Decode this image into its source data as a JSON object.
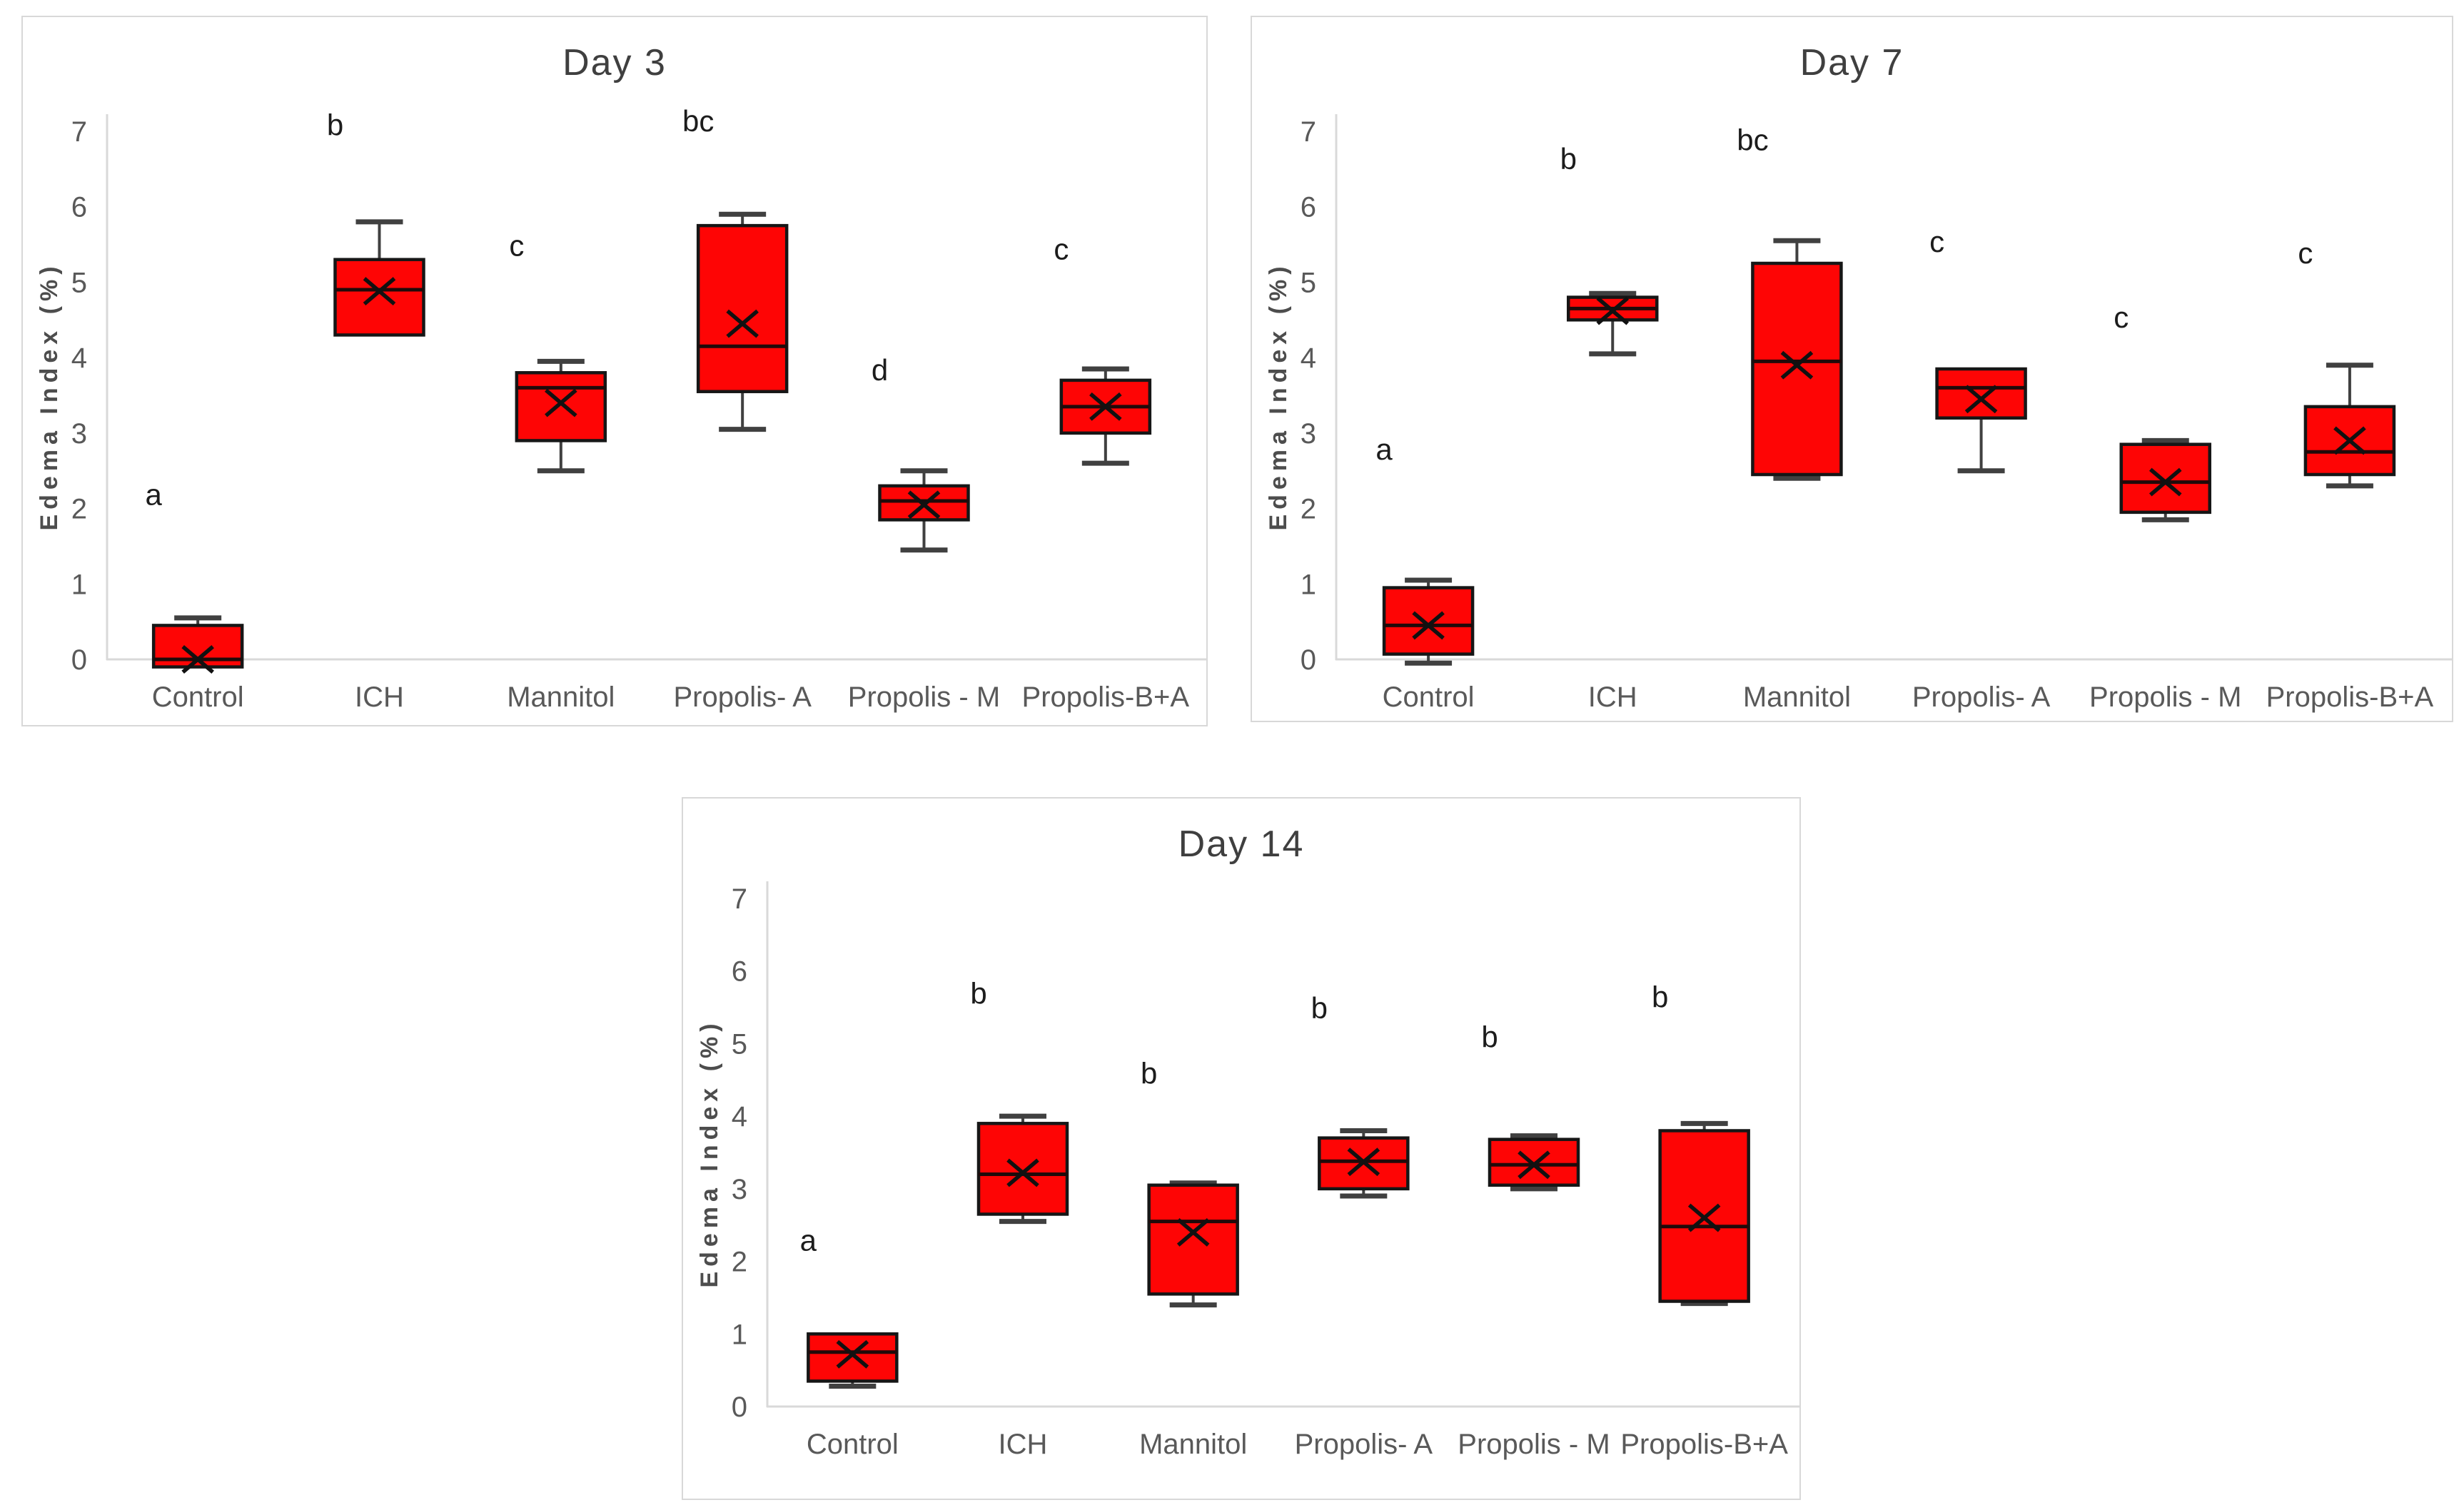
{
  "figure": {
    "background": "#ffffff",
    "description_letters": [
      "a",
      "b",
      "bc",
      "c",
      "d"
    ]
  },
  "colors": {
    "box_fill": "#fe0505",
    "box_border": "#161616",
    "median_line": "#200a0a",
    "whisker": "#404040",
    "mean_marker": "#111111",
    "axis_line": "#d9d9d9",
    "tick_text": "#595959",
    "title_text": "#3f3f3f",
    "letter_text": "#1c1c1c",
    "panel_border": "#d8d8d8"
  },
  "chart_data": [
    {
      "type": "box",
      "title": "Day 3",
      "ylabel": "Edema Index (%)",
      "xlabel": "",
      "ylim": [
        0,
        7
      ],
      "yticks": [
        0,
        1,
        2,
        3,
        4,
        5,
        6,
        7
      ],
      "grid": false,
      "legend": false,
      "categories": [
        "Control",
        "ICH",
        "Mannitol",
        "Propolis- A",
        "Propolis - M",
        "Propolis-B+A"
      ],
      "boxes": [
        {
          "label": "Control",
          "letter": "a",
          "letter_y": 2.05,
          "q1": -0.1,
          "median": 0.0,
          "q3": 0.45,
          "whisker_low": null,
          "whisker_high": 0.55,
          "mean": 0.0
        },
        {
          "label": "ICH",
          "letter": "b",
          "letter_y": 6.95,
          "q1": 4.3,
          "median": 4.9,
          "q3": 5.3,
          "whisker_low": null,
          "whisker_high": 5.8,
          "mean": 4.88
        },
        {
          "label": "Mannitol",
          "letter": "c",
          "letter_y": 5.35,
          "q1": 2.9,
          "median": 3.6,
          "q3": 3.8,
          "whisker_low": 2.5,
          "whisker_high": 3.95,
          "mean": 3.4
        },
        {
          "label": "Propolis- A",
          "letter": "bc",
          "letter_y": 7.0,
          "q1": 3.55,
          "median": 4.15,
          "q3": 5.75,
          "whisker_low": 3.05,
          "whisker_high": 5.9,
          "mean": 4.45
        },
        {
          "label": "Propolis - M",
          "letter": "d",
          "letter_y": 3.7,
          "q1": 1.85,
          "median": 2.1,
          "q3": 2.3,
          "whisker_low": 1.45,
          "whisker_high": 2.5,
          "mean": 2.05
        },
        {
          "label": "Propolis-B+A",
          "letter": "c",
          "letter_y": 5.3,
          "q1": 3.0,
          "median": 3.35,
          "q3": 3.7,
          "whisker_low": 2.6,
          "whisker_high": 3.85,
          "mean": 3.35
        }
      ]
    },
    {
      "type": "box",
      "title": "Day 7",
      "ylabel": "Edema Index (%)",
      "xlabel": "",
      "ylim": [
        0,
        7
      ],
      "yticks": [
        0,
        1,
        2,
        3,
        4,
        5,
        6,
        7
      ],
      "grid": false,
      "legend": false,
      "categories": [
        "Control",
        "ICH",
        "Mannitol",
        "Propolis- A",
        "Propolis - M",
        "Propolis-B+A"
      ],
      "boxes": [
        {
          "label": "Control",
          "letter": "a",
          "letter_y": 2.65,
          "q1": 0.07,
          "median": 0.45,
          "q3": 0.95,
          "whisker_low": -0.05,
          "whisker_high": 1.05,
          "mean": 0.45
        },
        {
          "label": "ICH",
          "letter": "b",
          "letter_y": 6.5,
          "q1": 4.5,
          "median": 4.65,
          "q3": 4.8,
          "whisker_low": 4.05,
          "whisker_high": 4.85,
          "mean": 4.62
        },
        {
          "label": "Mannitol",
          "letter": "bc",
          "letter_y": 6.75,
          "q1": 2.45,
          "median": 3.95,
          "q3": 5.25,
          "whisker_low": 2.4,
          "whisker_high": 5.55,
          "mean": 3.9
        },
        {
          "label": "Propolis- A",
          "letter": "c",
          "letter_y": 5.4,
          "q1": 3.2,
          "median": 3.6,
          "q3": 3.85,
          "whisker_low": 2.5,
          "whisker_high": null,
          "mean": 3.45
        },
        {
          "label": "Propolis - M",
          "letter": "c",
          "letter_y": 4.4,
          "q1": 1.95,
          "median": 2.35,
          "q3": 2.85,
          "whisker_low": 1.85,
          "whisker_high": 2.9,
          "mean": 2.35
        },
        {
          "label": "Propolis-B+A",
          "letter": "c",
          "letter_y": 5.25,
          "q1": 2.45,
          "median": 2.75,
          "q3": 3.35,
          "whisker_low": 2.3,
          "whisker_high": 3.9,
          "mean": 2.9
        }
      ]
    },
    {
      "type": "box",
      "title": "Day 14",
      "ylabel": "Edema Index (%)",
      "xlabel": "",
      "ylim": [
        0,
        7
      ],
      "yticks": [
        0,
        1,
        2,
        3,
        4,
        5,
        6,
        7
      ],
      "grid": false,
      "legend": false,
      "categories": [
        "Control",
        "ICH",
        "Mannitol",
        "Propolis- A",
        "Propolis - M",
        "Propolis-B+A"
      ],
      "boxes": [
        {
          "label": "Control",
          "letter": "a",
          "letter_y": 2.15,
          "q1": 0.35,
          "median": 0.75,
          "q3": 1.0,
          "whisker_low": 0.28,
          "whisker_high": null,
          "mean": 0.72
        },
        {
          "label": "ICH",
          "letter": "b",
          "letter_y": 5.55,
          "q1": 2.65,
          "median": 3.2,
          "q3": 3.9,
          "whisker_low": 2.55,
          "whisker_high": 4.0,
          "mean": 3.22
        },
        {
          "label": "Mannitol",
          "letter": "b",
          "letter_y": 4.45,
          "q1": 1.55,
          "median": 2.55,
          "q3": 3.05,
          "whisker_low": 1.4,
          "whisker_high": 3.08,
          "mean": 2.4
        },
        {
          "label": "Propolis- A",
          "letter": "b",
          "letter_y": 5.35,
          "q1": 3.0,
          "median": 3.38,
          "q3": 3.7,
          "whisker_low": 2.9,
          "whisker_high": 3.8,
          "mean": 3.37
        },
        {
          "label": "Propolis - M",
          "letter": "b",
          "letter_y": 4.95,
          "q1": 3.05,
          "median": 3.33,
          "q3": 3.68,
          "whisker_low": 3.0,
          "whisker_high": 3.73,
          "mean": 3.33
        },
        {
          "label": "Propolis-B+A",
          "letter": "b",
          "letter_y": 5.5,
          "q1": 1.45,
          "median": 2.48,
          "q3": 3.8,
          "whisker_low": 1.42,
          "whisker_high": 3.9,
          "mean": 2.6
        }
      ]
    }
  ]
}
